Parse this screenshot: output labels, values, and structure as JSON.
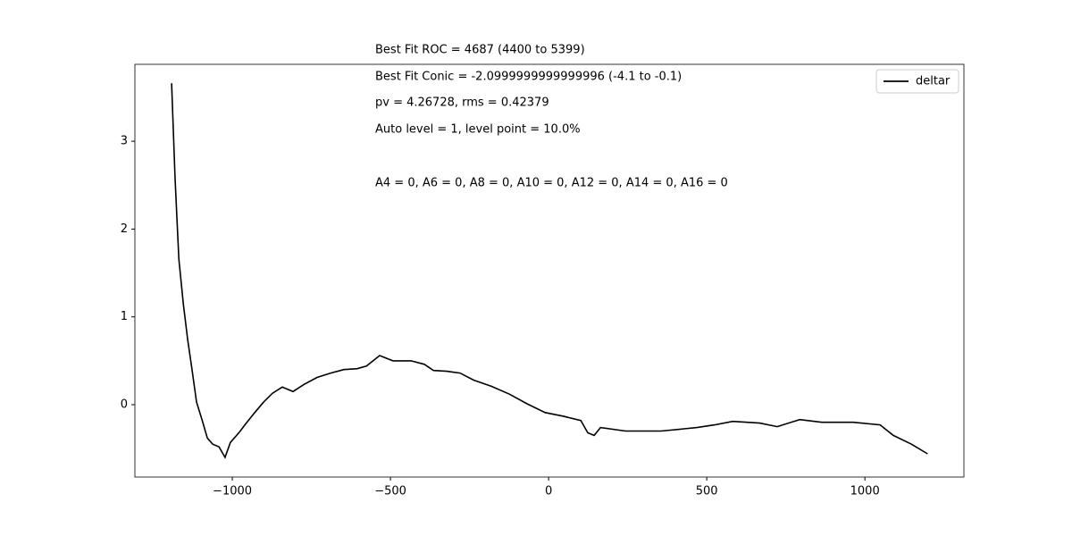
{
  "chart_data": {
    "type": "line",
    "annotations": [
      "Best Fit ROC = 4687  (4400 to 5399)",
      "Best Fit Conic = -2.0999999999999996  (-4.1 to -0.1)",
      "pv = 4.26728, rms = 0.42379",
      "Auto level = 1, level point = 10.0%",
      "A4 = 0, A6 = 0, A8 = 0, A10 = 0, A12 = 0, A14 = 0, A16 = 0"
    ],
    "x": [
      -1192,
      -1181,
      -1169,
      -1155,
      -1141,
      -1127,
      -1113,
      -1096,
      -1079,
      -1062,
      -1042,
      -1023,
      -1006,
      -994,
      -977,
      -958,
      -929,
      -901,
      -873,
      -842,
      -808,
      -774,
      -732,
      -689,
      -647,
      -605,
      -576,
      -534,
      -492,
      -435,
      -393,
      -364,
      -322,
      -280,
      -237,
      -181,
      -124,
      -68,
      -11,
      45,
      102,
      124,
      144,
      164,
      243,
      356,
      469,
      525,
      582,
      667,
      723,
      794,
      864,
      963,
      1048,
      1090,
      1147,
      1198
    ],
    "series": [
      {
        "name": "deltar",
        "color": "#000000",
        "values": [
          3.66,
          2.57,
          1.66,
          1.15,
          0.74,
          0.39,
          0.03,
          -0.17,
          -0.38,
          -0.45,
          -0.48,
          -0.6,
          -0.43,
          -0.38,
          -0.31,
          -0.22,
          -0.09,
          0.03,
          0.13,
          0.2,
          0.15,
          0.23,
          0.31,
          0.36,
          0.4,
          0.41,
          0.44,
          0.56,
          0.5,
          0.5,
          0.46,
          0.39,
          0.38,
          0.36,
          0.28,
          0.21,
          0.12,
          0.01,
          -0.09,
          -0.13,
          -0.18,
          -0.32,
          -0.35,
          -0.26,
          -0.3,
          -0.3,
          -0.26,
          -0.23,
          -0.19,
          -0.21,
          -0.25,
          -0.17,
          -0.2,
          -0.2,
          -0.23,
          -0.35,
          -0.45,
          -0.56
        ]
      }
    ],
    "xlim": [
      -1308,
      1313
    ],
    "xticks": [
      {
        "value": -1000,
        "label": "−1000"
      },
      {
        "value": -500,
        "label": "−500"
      },
      0,
      500,
      1000
    ],
    "ylim": [
      -0.824,
      3.876
    ],
    "yticks": [
      0,
      1,
      2,
      3
    ],
    "legend": "upper right"
  }
}
